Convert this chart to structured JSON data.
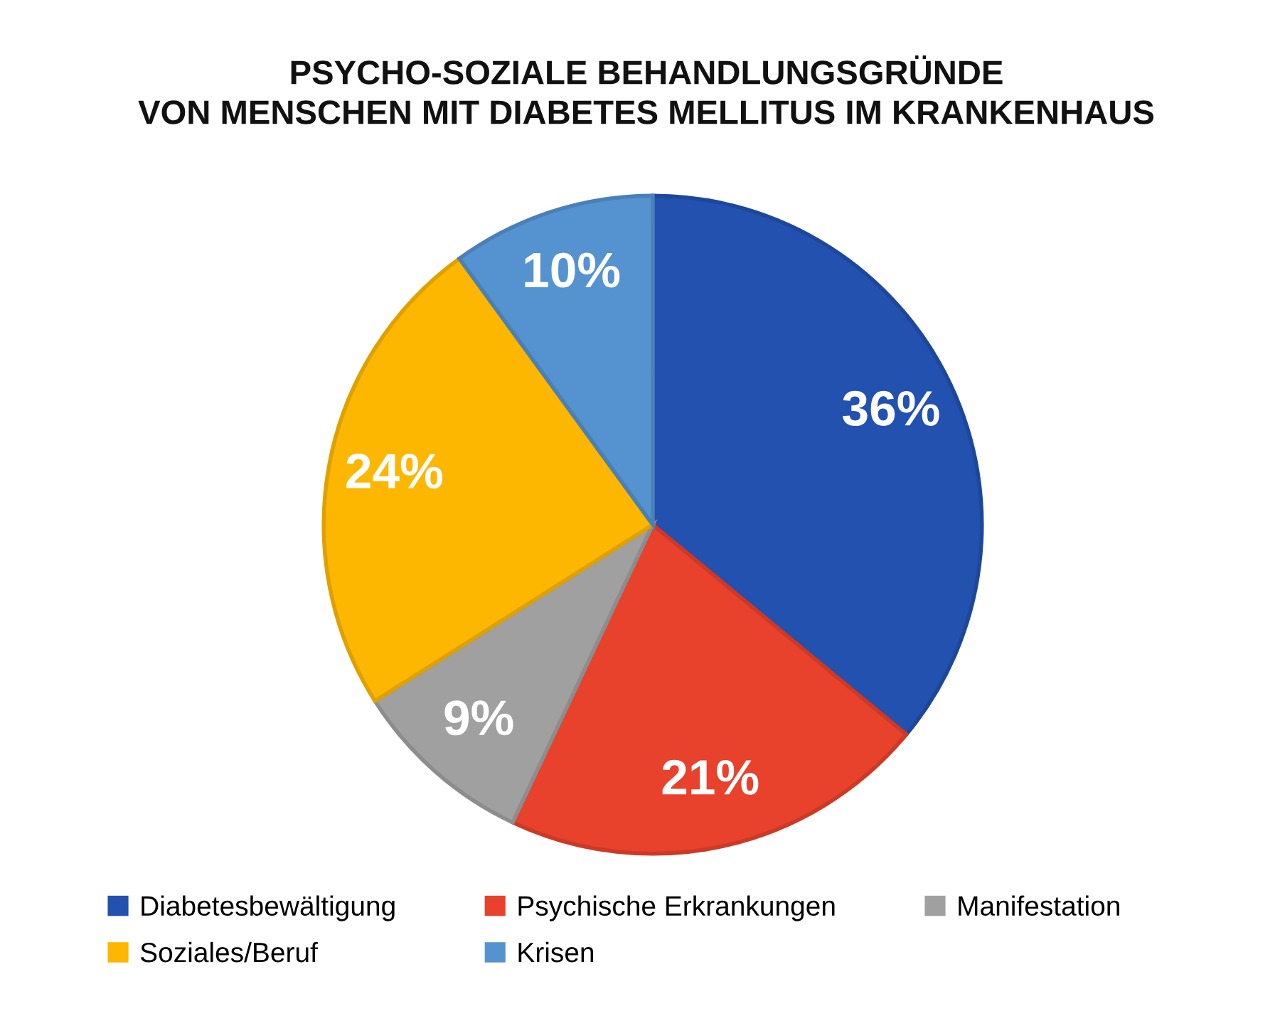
{
  "chart_data": {
    "type": "pie",
    "title": "PSYCHO-SOZIALE BEHANDLUNGSGRÜNDE\nVON MENSCHEN MIT DIABETES MELLITUS IM KRANKENHAUS",
    "categories": [
      "Diabetesbewältigung",
      "Psychische Erkrankungen",
      "Manifestation",
      "Soziales/Beruf",
      "Krisen"
    ],
    "values": [
      36,
      21,
      9,
      24,
      10
    ],
    "value_labels": [
      "36%",
      "21%",
      "9%",
      "24%",
      "10%"
    ],
    "colors": [
      "#2251b0",
      "#e8412c",
      "#a0a0a0",
      "#fdb700",
      "#5592d0"
    ],
    "legend": "bottom"
  }
}
